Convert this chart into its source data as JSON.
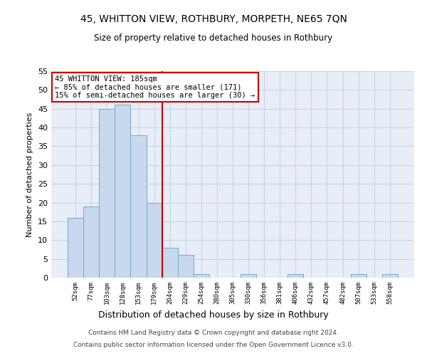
{
  "title1": "45, WHITTON VIEW, ROTHBURY, MORPETH, NE65 7QN",
  "title2": "Size of property relative to detached houses in Rothbury",
  "xlabel": "Distribution of detached houses by size in Rothbury",
  "ylabel": "Number of detached properties",
  "categories": [
    "52sqm",
    "77sqm",
    "103sqm",
    "128sqm",
    "153sqm",
    "179sqm",
    "204sqm",
    "229sqm",
    "254sqm",
    "280sqm",
    "305sqm",
    "330sqm",
    "356sqm",
    "381sqm",
    "406sqm",
    "432sqm",
    "457sqm",
    "482sqm",
    "507sqm",
    "533sqm",
    "558sqm"
  ],
  "values": [
    16,
    19,
    45,
    46,
    38,
    20,
    8,
    6,
    1,
    0,
    0,
    1,
    0,
    0,
    1,
    0,
    0,
    0,
    1,
    0,
    1
  ],
  "bar_color": "#c9d9ed",
  "bar_edge_color": "#6fa8d0",
  "grid_color": "#c8d4e3",
  "background_color": "#e8eef7",
  "vline_x": 5.5,
  "vline_color": "#cc0000",
  "annotation_text": "45 WHITTON VIEW: 185sqm\n← 85% of detached houses are smaller (171)\n15% of semi-detached houses are larger (30) →",
  "annotation_box_color": "#ffffff",
  "annotation_box_edge": "#cc0000",
  "ylim": [
    0,
    55
  ],
  "yticks": [
    0,
    5,
    10,
    15,
    20,
    25,
    30,
    35,
    40,
    45,
    50,
    55
  ],
  "footer1": "Contains HM Land Registry data © Crown copyright and database right 2024.",
  "footer2": "Contains public sector information licensed under the Open Government Licence v3.0."
}
